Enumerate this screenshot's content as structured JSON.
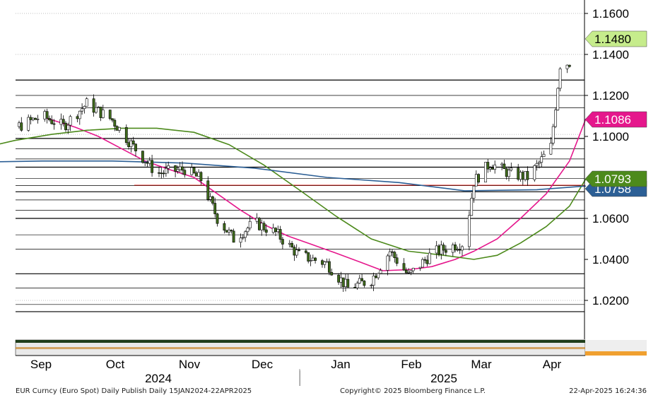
{
  "chart_data": {
    "type": "candlestick",
    "instrument": "EUR Curncy (Euro Spot)",
    "ylim": [
      0.989,
      1.167
    ],
    "y_ticks": [
      "1.0200",
      "1.0400",
      "1.0600",
      "1.1000",
      "1.1200",
      "1.1400",
      "1.1600"
    ],
    "month_labels": [
      "Sep",
      "Oct",
      "Nov",
      "Dec",
      "Jan",
      "Feb",
      "Mar",
      "Apr"
    ],
    "year_labels": [
      "2024",
      "2025"
    ],
    "price_tags": [
      {
        "label": "1.1480",
        "value": 1.148,
        "color": "#c6ec8c",
        "text_color": "#000000"
      },
      {
        "label": "1.1086",
        "value": 1.1086,
        "color": "#e5178c",
        "text_color": "#ffffff"
      },
      {
        "label": "1.0793",
        "value": 1.0793,
        "color": "#4d8a1c",
        "text_color": "#ffffff"
      },
      {
        "label": "1.0758",
        "value": 1.0758,
        "color": "#2c5f95",
        "text_color": "#ffffff"
      }
    ],
    "horizontal_levels": [
      1.1275,
      1.12,
      1.114,
      1.099,
      1.094,
      1.089,
      1.085,
      1.0795,
      1.076,
      1.073,
      1.069,
      1.064,
      1.06,
      1.052,
      1.045,
      1.033,
      1.026,
      1.018,
      1.0145
    ],
    "dashed_levels": [
      1.16,
      1.14,
      1.101,
      1.02
    ],
    "red_level": 1.0762,
    "series": [
      {
        "name": "",
        "color": "#e5178c",
        "points": [
          [
            "2024-09-03",
            1.1088
          ],
          [
            "2024-09-15",
            1.1045
          ],
          [
            "2024-09-25",
            1.1
          ],
          [
            "2024-10-05",
            1.094
          ],
          [
            "2024-10-15",
            1.088
          ],
          [
            "2024-10-25",
            1.084
          ],
          [
            "2024-11-05",
            1.08
          ],
          [
            "2024-11-15",
            1.072
          ],
          [
            "2024-11-25",
            1.064
          ],
          [
            "2024-12-05",
            1.057
          ],
          [
            "2024-12-15",
            1.0515
          ],
          [
            "2024-12-25",
            1.0475
          ],
          [
            "2025-01-05",
            1.043
          ],
          [
            "2025-01-15",
            1.0388
          ],
          [
            "2025-01-25",
            1.0345
          ],
          [
            "2025-02-05",
            1.035
          ],
          [
            "2025-02-15",
            1.0365
          ],
          [
            "2025-02-25",
            1.04
          ],
          [
            "2025-03-05",
            1.044
          ],
          [
            "2025-03-15",
            1.05
          ],
          [
            "2025-03-25",
            1.06
          ],
          [
            "2025-04-05",
            1.072
          ],
          [
            "2025-04-15",
            1.088
          ],
          [
            "2025-04-22",
            1.1086
          ]
        ]
      },
      {
        "name": "",
        "color": "#4d8a1c",
        "points": [
          [
            "2024-08-05",
            1.094
          ],
          [
            "2024-08-20",
            1.098
          ],
          [
            "2024-09-05",
            1.101
          ],
          [
            "2024-09-20",
            1.103
          ],
          [
            "2024-10-05",
            1.104
          ],
          [
            "2024-10-20",
            1.104
          ],
          [
            "2024-11-05",
            1.102
          ],
          [
            "2024-11-20",
            1.096
          ],
          [
            "2024-12-05",
            1.086
          ],
          [
            "2024-12-20",
            1.074
          ],
          [
            "2025-01-05",
            1.061
          ],
          [
            "2025-01-20",
            1.05
          ],
          [
            "2025-02-05",
            1.044
          ],
          [
            "2025-02-20",
            1.042
          ],
          [
            "2025-03-05",
            1.04
          ],
          [
            "2025-03-15",
            1.042
          ],
          [
            "2025-03-25",
            1.048
          ],
          [
            "2025-04-05",
            1.056
          ],
          [
            "2025-04-15",
            1.066
          ],
          [
            "2025-04-22",
            1.0793
          ]
        ]
      },
      {
        "name": "",
        "color": "#2c5f95",
        "points": [
          [
            "2024-08-05",
            1.0875
          ],
          [
            "2024-09-01",
            1.088
          ],
          [
            "2024-10-01",
            1.088
          ],
          [
            "2024-11-01",
            1.087
          ],
          [
            "2024-12-01",
            1.0845
          ],
          [
            "2025-01-01",
            1.08
          ],
          [
            "2025-02-01",
            1.0775
          ],
          [
            "2025-03-01",
            1.0735
          ],
          [
            "2025-04-01",
            1.074
          ],
          [
            "2025-04-22",
            1.0758
          ]
        ]
      }
    ],
    "candles_per_month_close": [
      [
        "2024-08-05",
        1.097
      ],
      [
        "2024-08-20",
        1.104
      ],
      [
        "2024-09-01",
        1.11
      ],
      [
        "2024-09-10",
        1.105
      ],
      [
        "2024-09-20",
        1.116
      ],
      [
        "2024-10-01",
        1.108
      ],
      [
        "2024-10-10",
        1.095
      ],
      [
        "2024-10-20",
        1.082
      ],
      [
        "2024-11-01",
        1.084
      ],
      [
        "2024-11-08",
        1.079
      ],
      [
        "2024-11-15",
        1.06
      ],
      [
        "2024-11-22",
        1.05
      ],
      [
        "2024-12-01",
        1.058
      ],
      [
        "2024-12-10",
        1.053
      ],
      [
        "2024-12-20",
        1.042
      ],
      [
        "2025-01-01",
        1.038
      ],
      [
        "2025-01-10",
        1.026
      ],
      [
        "2025-01-20",
        1.03
      ],
      [
        "2025-01-28",
        1.044
      ],
      [
        "2025-02-05",
        1.032
      ],
      [
        "2025-02-15",
        1.043
      ],
      [
        "2025-02-25",
        1.047
      ],
      [
        "2025-03-01",
        1.048
      ],
      [
        "2025-03-05",
        1.078
      ],
      [
        "2025-03-12",
        1.087
      ],
      [
        "2025-03-20",
        1.082
      ],
      [
        "2025-03-28",
        1.08
      ],
      [
        "2025-04-02",
        1.087
      ],
      [
        "2025-04-07",
        1.095
      ],
      [
        "2025-04-11",
        1.135
      ],
      [
        "2025-04-15",
        1.136
      ],
      [
        "2025-04-18",
        1.138
      ],
      [
        "2025-04-22",
        1.148
      ]
    ]
  },
  "footer": {
    "left": "EUR Curncy (Euro Spot) Daily Publish  Daily 15JAN2024-22APR2025",
    "center": "Copyright© 2025 Bloomberg Finance L.P.",
    "right": "22-Apr-2025 16:24:36"
  }
}
